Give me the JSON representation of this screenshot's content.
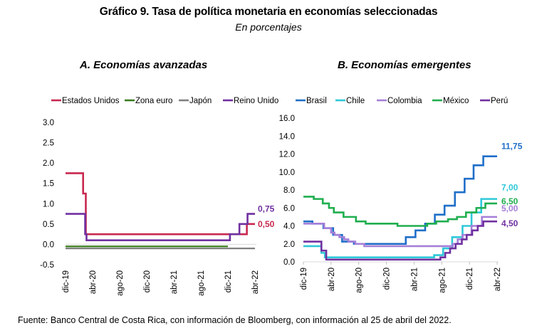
{
  "header": {
    "title": "Gráfico 9. Tasa de política monetaria en economías seleccionadas",
    "subtitle": "En porcentajes"
  },
  "footer": {
    "source": "Fuente: Banco Central de Costa Rica, con información de Bloomberg, con información al 25 de abril del 2022."
  },
  "chart_data": [
    {
      "type": "line",
      "title": "A.   Economías avanzadas",
      "xlabel": "",
      "ylabel": "",
      "ylim": [
        -0.5,
        3.0
      ],
      "yticks": [
        "3.0",
        "2.5",
        "2.0",
        "1.5",
        "1.0",
        "0.5",
        "0.0",
        "-0.5"
      ],
      "ytick_values": [
        3.0,
        2.5,
        2.0,
        1.5,
        1.0,
        0.5,
        0.0,
        -0.5
      ],
      "xlim": [
        0,
        28
      ],
      "xticks": [
        "dic-19",
        "abr-20",
        "ago-20",
        "dic-20",
        "abr-21",
        "ago-21",
        "dic-21",
        "abr-22"
      ],
      "xtick_values": [
        0,
        4,
        8,
        12,
        16,
        20,
        24,
        28
      ],
      "legend": "top",
      "grid": false,
      "series": [
        {
          "name": "Estados Unidos",
          "color": "#c8284f",
          "end_label": "0,50",
          "x": [
            0,
            2.6,
            2.9,
            3.0,
            26.8,
            28
          ],
          "y": [
            1.75,
            1.25,
            1.25,
            0.25,
            0.5,
            0.5
          ]
        },
        {
          "name": "Zona euro",
          "color": "#3a7d1e",
          "end_label": "",
          "x": [
            0,
            24
          ],
          "y": [
            -0.05,
            -0.05
          ]
        },
        {
          "name": "Japón",
          "color": "#808080",
          "end_label": "",
          "x": [
            0,
            28
          ],
          "y": [
            -0.1,
            -0.1
          ]
        },
        {
          "name": "Reino Unido",
          "color": "#7030a0",
          "end_label": "0,75",
          "x": [
            0,
            2.9,
            3.1,
            24.3,
            25.7,
            26.9,
            28
          ],
          "y": [
            0.75,
            0.25,
            0.1,
            0.25,
            0.5,
            0.75,
            0.75
          ]
        }
      ]
    },
    {
      "type": "line",
      "title": "B. Economías emergentes",
      "xlabel": "",
      "ylabel": "",
      "ylim": [
        0,
        16
      ],
      "yticks": [
        "16.0",
        "14.0",
        "12.0",
        "10.0",
        "8.0",
        "6.0",
        "4.0",
        "2.0",
        "0.0"
      ],
      "ytick_values": [
        16,
        14,
        12,
        10,
        8,
        6,
        4,
        2,
        0
      ],
      "xlim": [
        0,
        28
      ],
      "xticks": [
        "dic-19",
        "abr-20",
        "ago-20",
        "dic-20",
        "abr-21",
        "ago-21",
        "dic-21",
        "abr-22"
      ],
      "xtick_values": [
        0,
        4,
        8,
        12,
        16,
        20,
        24,
        28
      ],
      "legend": "top",
      "grid": false,
      "series": [
        {
          "name": "Brasil",
          "color": "#1f6fc8",
          "end_label": "11,75",
          "x": [
            0,
            1.3,
            2.9,
            4.3,
            5.6,
            7.3,
            14.8,
            16.2,
            17.6,
            19.0,
            20.4,
            21.9,
            23.3,
            24.6,
            26.0,
            28
          ],
          "y": [
            4.5,
            4.25,
            3.75,
            3.0,
            2.25,
            2.0,
            2.75,
            3.5,
            4.25,
            5.25,
            6.25,
            7.75,
            9.25,
            10.75,
            11.75,
            11.75
          ]
        },
        {
          "name": "Chile",
          "color": "#2ec8d8",
          "end_label": "7,00",
          "x": [
            0,
            2.6,
            3.1,
            18.9,
            20.2,
            21.5,
            23.0,
            24.3,
            25.7,
            28
          ],
          "y": [
            1.75,
            1.0,
            0.5,
            0.75,
            1.5,
            2.75,
            4.0,
            5.5,
            7.0,
            7.0
          ]
        },
        {
          "name": "Colombia",
          "color": "#a57fd8",
          "end_label": "5,00",
          "x": [
            0,
            3.0,
            4.0,
            4.5,
            5.2,
            5.9,
            6.5,
            7.5,
            8.8,
            21.6,
            22.3,
            23.0,
            24.3,
            25.8,
            28
          ],
          "y": [
            4.25,
            3.75,
            3.25,
            3.0,
            2.75,
            2.5,
            2.25,
            2.0,
            1.75,
            2.0,
            2.5,
            3.0,
            4.0,
            5.0,
            5.0
          ]
        },
        {
          "name": "México",
          "color": "#1fae4e",
          "end_label": "6,50",
          "x": [
            0,
            1.5,
            2.8,
            3.7,
            4.4,
            5.8,
            7.6,
            9.0,
            13.6,
            17.9,
            19.2,
            20.9,
            22.2,
            23.5,
            25.0,
            26.3,
            28
          ],
          "y": [
            7.25,
            7.0,
            6.5,
            6.0,
            5.5,
            5.0,
            4.5,
            4.25,
            4.0,
            4.25,
            4.5,
            4.75,
            5.0,
            5.5,
            6.0,
            6.5,
            6.5
          ]
        },
        {
          "name": "Perú",
          "color": "#7030a0",
          "end_label": "4,50",
          "x": [
            0,
            2.6,
            3.3,
            19.8,
            20.5,
            21.2,
            22.0,
            22.9,
            23.6,
            24.4,
            25.2,
            26.0,
            26.7,
            28
          ],
          "y": [
            2.25,
            1.25,
            0.25,
            0.5,
            1.0,
            1.5,
            2.0,
            2.5,
            3.0,
            3.5,
            4.0,
            4.5,
            4.5,
            4.5
          ]
        }
      ]
    }
  ]
}
